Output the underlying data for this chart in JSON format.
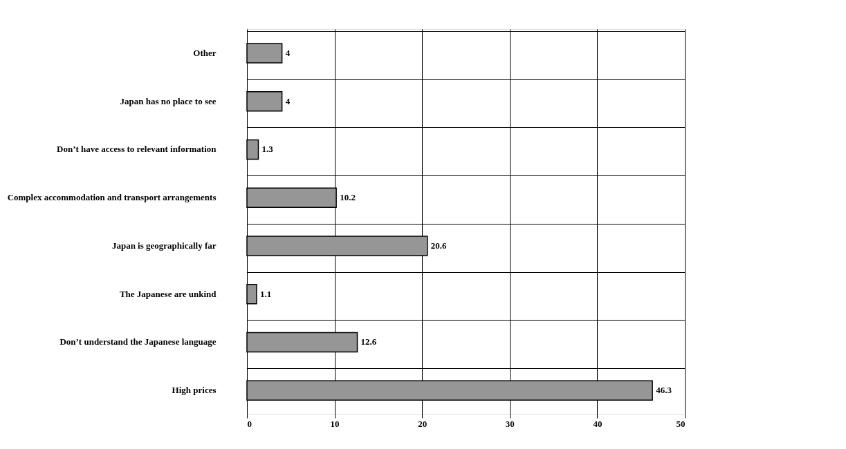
{
  "chart_data": {
    "type": "bar",
    "orientation": "horizontal",
    "categories": [
      "Other",
      "Japan has no place to see",
      "Don’t have access to relevant information",
      "Complex accommodation and transport arrangements",
      "Japan is geographically far",
      "The Japanese are unkind",
      "Don’t understand the Japanese language",
      "High prices"
    ],
    "values": [
      4,
      4,
      1.3,
      10.2,
      20.6,
      1.1,
      12.6,
      46.3
    ],
    "color": "#969696",
    "xlim": [
      0,
      50
    ],
    "xticks": [
      0,
      10,
      20,
      30,
      40,
      50
    ],
    "grid": true,
    "data_labels": true
  }
}
